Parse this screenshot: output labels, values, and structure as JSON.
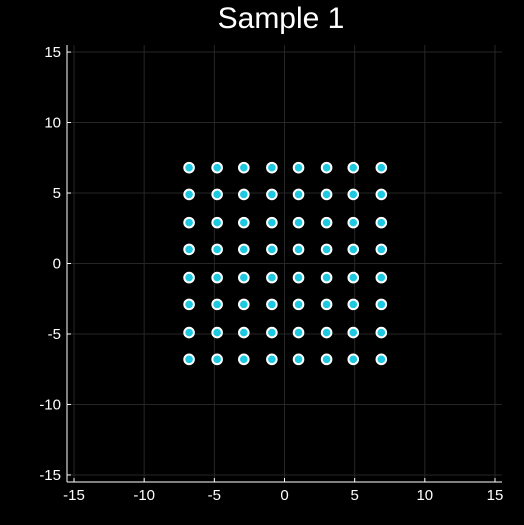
{
  "chart_data": {
    "type": "scatter",
    "title": "Sample 1",
    "xlabel": "",
    "ylabel": "",
    "xlim": [
      -15.5,
      15.5
    ],
    "ylim": [
      -15.5,
      15.5
    ],
    "xticks": [
      -15,
      -10,
      -5,
      0,
      5,
      10,
      15
    ],
    "yticks": [
      -15,
      -10,
      -5,
      0,
      5,
      10,
      15
    ],
    "xtick_labels": [
      "-15",
      "-10",
      "-5",
      "0",
      "5",
      "10",
      "15"
    ],
    "ytick_labels": [
      "-15",
      "-10",
      "-5",
      "0",
      "5",
      "10",
      "15"
    ],
    "grid": true,
    "legend": "none",
    "series": [
      {
        "x": [
          -6.8,
          -4.8,
          -2.9,
          -0.9,
          1.0,
          3.0,
          4.9,
          6.9,
          -6.8,
          -4.8,
          -2.9,
          -0.9,
          1.0,
          3.0,
          4.9,
          6.9,
          -6.8,
          -4.8,
          -2.9,
          -0.9,
          1.0,
          3.0,
          4.9,
          6.9,
          -6.8,
          -4.8,
          -2.9,
          -0.9,
          1.0,
          3.0,
          4.9,
          6.9,
          -6.8,
          -4.8,
          -2.9,
          -0.9,
          1.0,
          3.0,
          4.9,
          6.9,
          -6.8,
          -4.8,
          -2.9,
          -0.9,
          1.0,
          3.0,
          4.9,
          6.9,
          -6.8,
          -4.8,
          -2.9,
          -0.9,
          1.0,
          3.0,
          4.9,
          6.9,
          -6.8,
          -4.8,
          -2.9,
          -0.9,
          1.0,
          3.0,
          4.9,
          6.9
        ],
        "y": [
          6.8,
          6.8,
          6.8,
          6.8,
          6.8,
          6.8,
          6.8,
          6.8,
          4.9,
          4.9,
          4.9,
          4.9,
          4.9,
          4.9,
          4.9,
          4.9,
          2.9,
          2.9,
          2.9,
          2.9,
          2.9,
          2.9,
          2.9,
          2.9,
          1.0,
          1.0,
          1.0,
          1.0,
          1.0,
          1.0,
          1.0,
          1.0,
          -1.0,
          -1.0,
          -1.0,
          -1.0,
          -1.0,
          -1.0,
          -1.0,
          -1.0,
          -2.9,
          -2.9,
          -2.9,
          -2.9,
          -2.9,
          -2.9,
          -2.9,
          -2.9,
          -4.9,
          -4.9,
          -4.9,
          -4.9,
          -4.9,
          -4.9,
          -4.9,
          -4.9,
          -6.8,
          -6.8,
          -6.8,
          -6.8,
          -6.8,
          -6.8,
          -6.8,
          -6.8
        ]
      }
    ],
    "colors": {
      "background": "#000000",
      "axis": "#ffffff",
      "grid": "#262626",
      "marker_fill": "#1ec8e0",
      "marker_stroke": "#ffffff",
      "text": "#ffffff"
    }
  }
}
